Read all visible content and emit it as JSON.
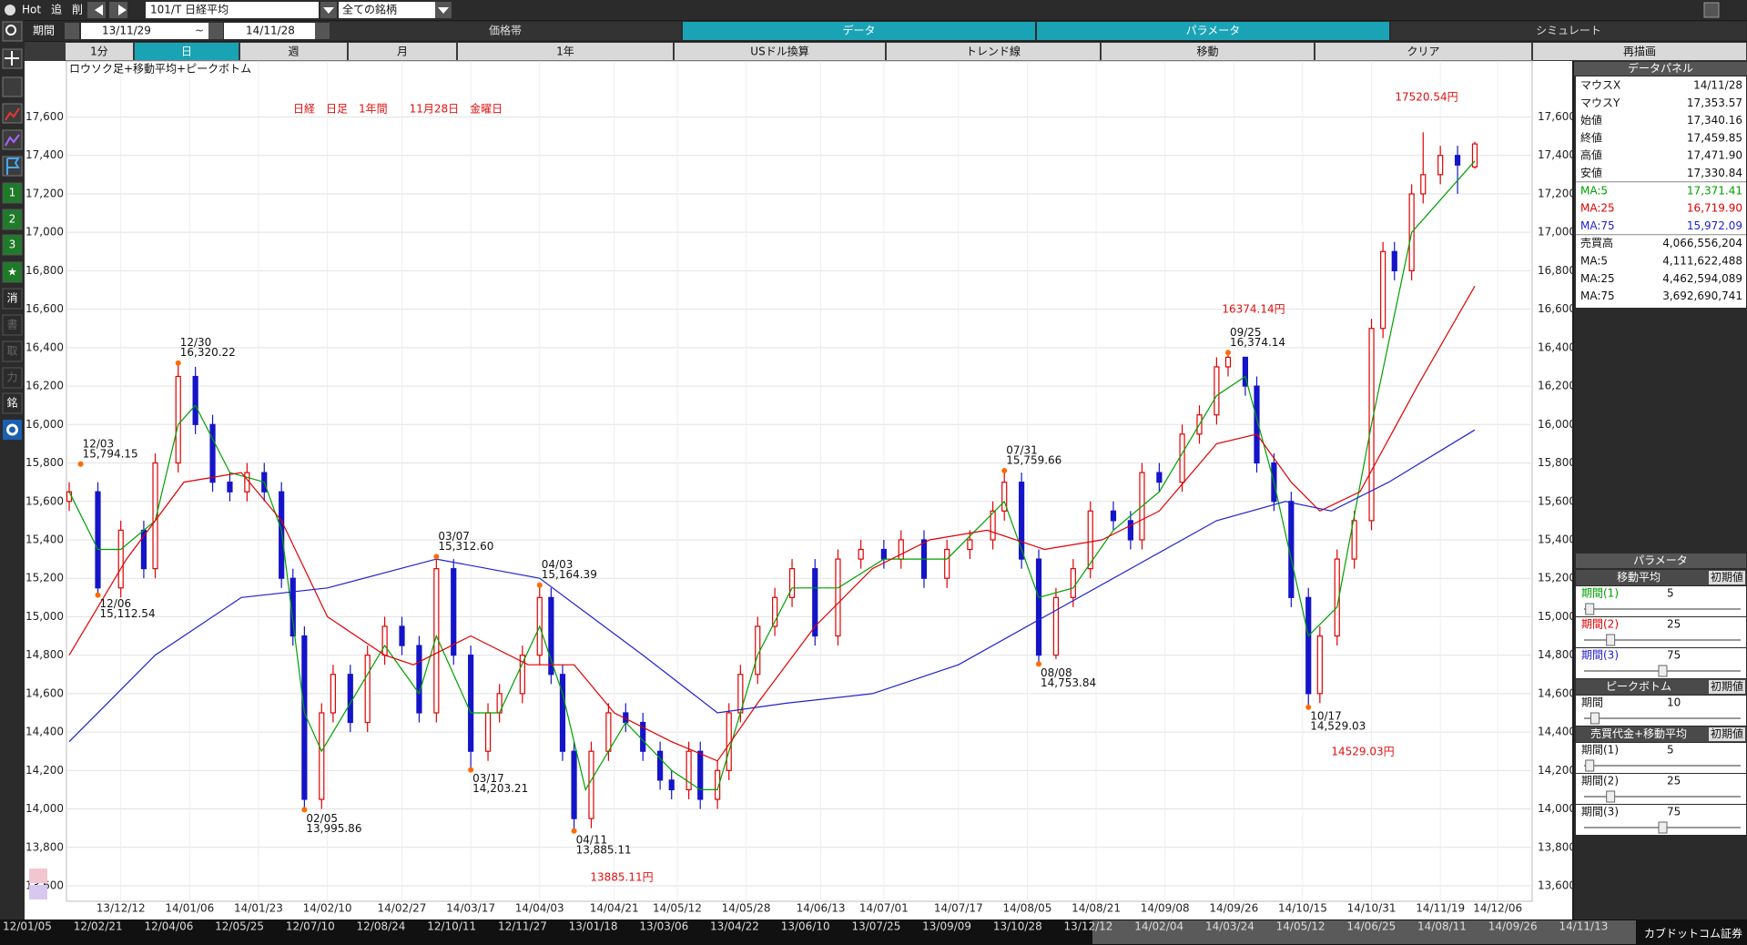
{
  "ui": {
    "toolbar": {
      "hot": "Hot",
      "add": "追",
      "del": "削",
      "symbol": "101/T 日経平均",
      "filter": "全ての銘柄",
      "period_label": "期間",
      "from": "13/11/29",
      "tilde": "~",
      "to": "14/11/28"
    },
    "tabs": [
      "価格帯",
      "データ",
      "パラメータ",
      "シミュレート"
    ],
    "active_tabs": [
      1,
      2
    ],
    "buttons": [
      "1分",
      "日",
      "週",
      "月",
      "1年",
      "USドル換算",
      "トレンド線",
      "移動",
      "クリア",
      "再描画"
    ],
    "active_button": 1,
    "sidebar": [
      "1",
      "2",
      "3",
      "★",
      "消",
      "書",
      "取",
      "力",
      "銘"
    ],
    "data_panel": {
      "title": "データパネル",
      "rows": [
        [
          "マウスX",
          "14/11/28"
        ],
        [
          "マウスY",
          "17,353.57"
        ],
        [
          "始値",
          "17,340.16"
        ],
        [
          "終値",
          "17,459.85"
        ],
        [
          "高値",
          "17,471.90"
        ],
        [
          "安値",
          "17,330.84"
        ],
        [
          "MA:5",
          "17,371.41"
        ],
        [
          "MA:25",
          "16,719.90"
        ],
        [
          "MA:75",
          "15,972.09"
        ],
        [
          "売買高",
          "4,066,556,204"
        ],
        [
          "MA:5",
          "4,111,622,488"
        ],
        [
          "MA:25",
          "4,462,594,089"
        ],
        [
          "MA:75",
          "3,692,690,741"
        ]
      ]
    },
    "param_panel": {
      "title": "パラメータ",
      "reset": "初期値",
      "slider_range": [
        0,
        150
      ],
      "groups": [
        {
          "name": "移動平均",
          "rows": [
            {
              "label": "期間(1)",
              "value": 5,
              "color": "#00a000"
            },
            {
              "label": "期間(2)",
              "value": 25,
              "color": "#e00000"
            },
            {
              "label": "期間(3)",
              "value": 75,
              "color": "#2020d0"
            }
          ]
        },
        {
          "name": "ピークボトム",
          "rows": [
            {
              "label": "期間",
              "value": 10,
              "color": "#111111"
            }
          ]
        },
        {
          "name": "売買代金+移動平均",
          "rows": [
            {
              "label": "期間(1)",
              "value": 5,
              "color": "#111111"
            },
            {
              "label": "期間(2)",
              "value": 25,
              "color": "#111111"
            },
            {
              "label": "期間(3)",
              "value": 75,
              "color": "#111111"
            }
          ]
        }
      ]
    },
    "scroll_dates": [
      "12/01/05",
      "12/02/21",
      "12/04/06",
      "12/05/25",
      "12/07/10",
      "12/08/24",
      "12/10/11",
      "12/11/27",
      "13/01/18",
      "13/03/06",
      "13/04/22",
      "13/06/10",
      "13/07/25",
      "13/09/09",
      "13/10/28",
      "13/12/12",
      "14/02/04",
      "14/03/24",
      "14/05/12",
      "14/06/25",
      "14/08/11",
      "14/09/26",
      "14/11/13"
    ],
    "brand": "カブドットコム証券"
  },
  "chart_data": {
    "type": "candlestick",
    "chart_label": "ロウソク足+移動平均+ピークボトム",
    "title": "日経　日足　1年間　　11月28日　金曜日",
    "annotations": [
      "17520.54円",
      "16374.14円",
      "14529.03円",
      "13885.11円"
    ],
    "xlim": [
      0,
      255
    ],
    "xticks": [
      {
        "value": 9,
        "label": "13/12/12"
      },
      {
        "value": 21,
        "label": "14/01/06"
      },
      {
        "value": 33,
        "label": "14/01/23"
      },
      {
        "value": 45,
        "label": "14/02/10"
      },
      {
        "value": 58,
        "label": "14/02/27"
      },
      {
        "value": 70,
        "label": "14/03/17"
      },
      {
        "value": 82,
        "label": "14/04/03"
      },
      {
        "value": 95,
        "label": "14/04/21"
      },
      {
        "value": 106,
        "label": "14/05/12"
      },
      {
        "value": 118,
        "label": "14/05/28"
      },
      {
        "value": 131,
        "label": "14/06/13"
      },
      {
        "value": 142,
        "label": "14/07/01"
      },
      {
        "value": 155,
        "label": "14/07/17"
      },
      {
        "value": 167,
        "label": "14/08/05"
      },
      {
        "value": 179,
        "label": "14/08/21"
      },
      {
        "value": 191,
        "label": "14/09/08"
      },
      {
        "value": 203,
        "label": "14/09/26"
      },
      {
        "value": 215,
        "label": "14/10/15"
      },
      {
        "value": 227,
        "label": "14/10/31"
      },
      {
        "value": 239,
        "label": "14/11/19"
      },
      {
        "value": 249,
        "label": "14/12/06"
      }
    ],
    "ylim": [
      13500,
      17800
    ],
    "yticks": [
      {
        "value": 13600,
        "label": "13,600"
      },
      {
        "value": 13800,
        "label": "13,800"
      },
      {
        "value": 14000,
        "label": "14,000"
      },
      {
        "value": 14200,
        "label": "14,200"
      },
      {
        "value": 14400,
        "label": "14,400"
      },
      {
        "value": 14600,
        "label": "14,600"
      },
      {
        "value": 14800,
        "label": "14,800"
      },
      {
        "value": 15000,
        "label": "15,000"
      },
      {
        "value": 15200,
        "label": "15,200"
      },
      {
        "value": 15400,
        "label": "15,400"
      },
      {
        "value": 15600,
        "label": "15,600"
      },
      {
        "value": 15800,
        "label": "15,800"
      },
      {
        "value": 16000,
        "label": "16,000"
      },
      {
        "value": 16200,
        "label": "16,200"
      },
      {
        "value": 16400,
        "label": "16,400"
      },
      {
        "value": 16600,
        "label": "16,600"
      },
      {
        "value": 16800,
        "label": "16,800"
      },
      {
        "value": 17000,
        "label": "17,000"
      },
      {
        "value": 17200,
        "label": "17,200"
      },
      {
        "value": 17400,
        "label": "17,400"
      },
      {
        "value": 17600,
        "label": "17,600"
      }
    ],
    "grid": true,
    "candles": {
      "up_color": "#e00000",
      "down_color": "#1414c8",
      "x": [
        0,
        5,
        9,
        13,
        15,
        19,
        22,
        25,
        28,
        31,
        34,
        37,
        39,
        41,
        44,
        46,
        49,
        52,
        55,
        58,
        61,
        64,
        67,
        70,
        73,
        75,
        79,
        82,
        84,
        86,
        88,
        91,
        94,
        97,
        100,
        103,
        105,
        108,
        110,
        113,
        115,
        117,
        120,
        123,
        126,
        130,
        134,
        138,
        142,
        145,
        149,
        153,
        157,
        161,
        163,
        166,
        169,
        172,
        175,
        178,
        182,
        185,
        187,
        190,
        194,
        197,
        200,
        202,
        205,
        207,
        210,
        213,
        216,
        218,
        221,
        224,
        227,
        229,
        231,
        234,
        236,
        239,
        242,
        245
      ],
      "open": [
        15600,
        15650,
        15150,
        15450,
        15250,
        15800,
        16250,
        16000,
        15700,
        15650,
        15750,
        15650,
        15200,
        14900,
        14050,
        14500,
        14700,
        14450,
        14800,
        14950,
        14850,
        14500,
        15250,
        14800,
        14300,
        14500,
        14600,
        14800,
        15100,
        14700,
        14300,
        13950,
        14300,
        14500,
        14450,
        14300,
        14150,
        14100,
        14300,
        14050,
        14200,
        14500,
        14700,
        14950,
        15100,
        15250,
        14900,
        15300,
        15350,
        15300,
        15400,
        15200,
        15350,
        15400,
        15550,
        15700,
        15300,
        14800,
        15100,
        15250,
        15550,
        15500,
        15400,
        15750,
        15700,
        15950,
        16050,
        16300,
        16350,
        16200,
        15800,
        15600,
        15100,
        14600,
        14900,
        15300,
        15500,
        16500,
        16900,
        16800,
        17200,
        17300,
        17400,
        17340.16
      ],
      "high": [
        15700,
        15700,
        15500,
        15500,
        15850,
        16320.22,
        16300,
        16050,
        15750,
        15800,
        15800,
        15700,
        15250,
        14950,
        14550,
        14750,
        14750,
        14850,
        15000,
        15000,
        14900,
        15312.6,
        15300,
        14850,
        14550,
        14650,
        14850,
        15164.39,
        15150,
        14750,
        14350,
        14350,
        14550,
        14550,
        14500,
        14350,
        14200,
        14350,
        14350,
        14250,
        14550,
        14750,
        15000,
        15150,
        15300,
        15300,
        15350,
        15400,
        15400,
        15450,
        15450,
        15400,
        15450,
        15600,
        15759.66,
        15750,
        15350,
        15150,
        15300,
        15600,
        15600,
        15550,
        15800,
        15800,
        16000,
        16100,
        16350,
        16374.14,
        16350,
        16250,
        15850,
        15650,
        15150,
        14950,
        15350,
        15550,
        16550,
        16950,
        16950,
        17250,
        17520.54,
        17450,
        17450,
        17471.9
      ],
      "low": [
        15550,
        15112.54,
        15100,
        15200,
        15200,
        15750,
        15950,
        15650,
        15600,
        15600,
        15600,
        15150,
        14850,
        13995.86,
        14000,
        14450,
        14400,
        14400,
        14750,
        14800,
        14450,
        14450,
        14750,
        14203.21,
        14250,
        14450,
        14550,
        14750,
        14650,
        14250,
        13885.11,
        13900,
        14250,
        14400,
        14250,
        14100,
        14050,
        14050,
        14000,
        14000,
        14150,
        14450,
        14650,
        14900,
        15050,
        14850,
        14850,
        15250,
        15250,
        15250,
        15150,
        15150,
        15300,
        15350,
        15500,
        15250,
        14753.84,
        14780,
        15050,
        15200,
        15450,
        15350,
        15350,
        15650,
        15650,
        15900,
        16000,
        16250,
        16150,
        15750,
        15550,
        15050,
        14529.03,
        14550,
        14850,
        15250,
        15450,
        16450,
        16750,
        16750,
        17150,
        17250,
        17200,
        17330.84
      ],
      "close": [
        15650,
        15150,
        15450,
        15250,
        15800,
        16250,
        16000,
        15700,
        15650,
        15750,
        15650,
        15200,
        14900,
        14050,
        14500,
        14700,
        14450,
        14800,
        14950,
        14850,
        14500,
        15250,
        14800,
        14300,
        14500,
        14600,
        14800,
        15100,
        14700,
        14300,
        13950,
        14300,
        14500,
        14450,
        14300,
        14150,
        14100,
        14300,
        14050,
        14200,
        14500,
        14700,
        14950,
        15100,
        15250,
        14900,
        15300,
        15350,
        15300,
        15400,
        15200,
        15350,
        15400,
        15550,
        15700,
        15300,
        14800,
        15100,
        15250,
        15550,
        15500,
        15400,
        15750,
        15700,
        15950,
        16050,
        16300,
        16350,
        16200,
        15800,
        15600,
        15100,
        14600,
        14900,
        15300,
        15500,
        16500,
        16900,
        16800,
        17200,
        17300,
        17400,
        17350,
        17459.85
      ]
    },
    "series": [
      {
        "color": "#00a000",
        "x": [
          0,
          5,
          9,
          15,
          19,
          22,
          28,
          34,
          37,
          41,
          44,
          49,
          55,
          61,
          64,
          70,
          75,
          82,
          86,
          90,
          97,
          105,
          110,
          113,
          120,
          126,
          134,
          142,
          153,
          163,
          169,
          175,
          182,
          190,
          200,
          205,
          210,
          216,
          221,
          227,
          234,
          245
        ],
        "values": [
          15650,
          15350,
          15350,
          15500,
          16000,
          16100,
          15750,
          15700,
          15450,
          14500,
          14300,
          14550,
          14850,
          14600,
          14900,
          14500,
          14500,
          14950,
          14600,
          14100,
          14450,
          14200,
          14100,
          14100,
          14800,
          15150,
          15150,
          15300,
          15300,
          15600,
          15100,
          15150,
          15450,
          15650,
          16150,
          16250,
          15700,
          14900,
          15050,
          16000,
          17000,
          17371.41
        ]
      },
      {
        "color": "#e00000",
        "x": [
          0,
          10,
          20,
          30,
          37,
          45,
          55,
          60,
          70,
          80,
          88,
          95,
          105,
          113,
          120,
          130,
          140,
          150,
          160,
          170,
          180,
          190,
          200,
          207,
          213,
          218,
          225,
          235,
          245
        ],
        "values": [
          14800,
          15300,
          15700,
          15750,
          15500,
          15000,
          14800,
          14750,
          14900,
          14750,
          14750,
          14500,
          14350,
          14250,
          14550,
          14950,
          15250,
          15400,
          15450,
          15350,
          15400,
          15550,
          15900,
          15950,
          15700,
          15550,
          15650,
          16200,
          16719.9
        ]
      },
      {
        "color": "#2020d0",
        "x": [
          0,
          15,
          30,
          45,
          64,
          82,
          100,
          113,
          125,
          140,
          155,
          170,
          185,
          200,
          212,
          220,
          230,
          245
        ],
        "values": [
          14350,
          14800,
          15100,
          15150,
          15300,
          15200,
          14800,
          14500,
          14550,
          14600,
          14750,
          15000,
          15250,
          15500,
          15600,
          15550,
          15700,
          15972.09
        ]
      }
    ],
    "peaks": [
      {
        "date": "12/03",
        "x": 2,
        "value": 15794.15,
        "value_label": "15,794.15",
        "kind": "high"
      },
      {
        "date": "12/06",
        "x": 5,
        "value": 15112.54,
        "value_label": "15,112.54",
        "kind": "low"
      },
      {
        "date": "12/30",
        "x": 19,
        "value": 16320.22,
        "value_label": "16,320.22",
        "kind": "high"
      },
      {
        "date": "02/05",
        "x": 41,
        "value": 13995.86,
        "value_label": "13,995.86",
        "kind": "low"
      },
      {
        "date": "03/07",
        "x": 64,
        "value": 15312.6,
        "value_label": "15,312.60",
        "kind": "high"
      },
      {
        "date": "03/17",
        "x": 70,
        "value": 14203.21,
        "value_label": "14,203.21",
        "kind": "low"
      },
      {
        "date": "04/03",
        "x": 82,
        "value": 15164.39,
        "value_label": "15,164.39",
        "kind": "high"
      },
      {
        "date": "04/11",
        "x": 88,
        "value": 13885.11,
        "value_label": "13,885.11",
        "kind": "low"
      },
      {
        "date": "07/31",
        "x": 163,
        "value": 15759.66,
        "value_label": "15,759.66",
        "kind": "high"
      },
      {
        "date": "08/08",
        "x": 169,
        "value": 14753.84,
        "value_label": "14,753.84",
        "kind": "low"
      },
      {
        "date": "09/25",
        "x": 202,
        "value": 16374.14,
        "value_label": "16,374.14",
        "kind": "high"
      },
      {
        "date": "10/17",
        "x": 216,
        "value": 14529.03,
        "value_label": "14,529.03",
        "kind": "low"
      }
    ],
    "peak_color": "#ff6a00"
  }
}
